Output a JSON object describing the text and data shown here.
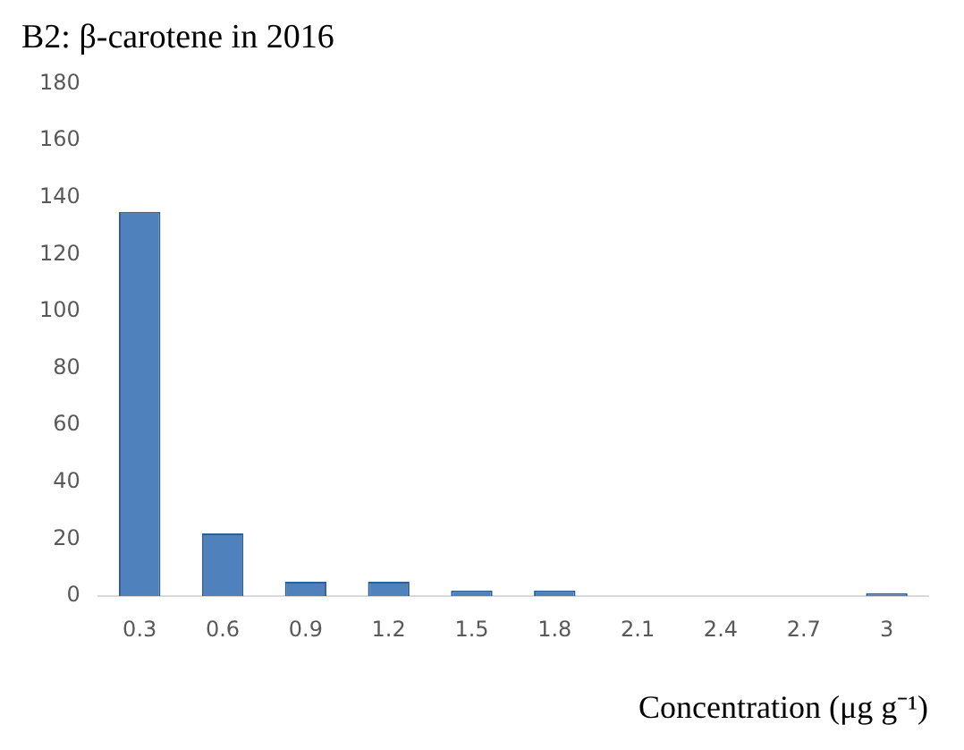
{
  "chart_data": {
    "type": "bar",
    "title": "B2: β-carotene in 2016",
    "xlabel": "Concentration (μg g⁻¹)",
    "categories": [
      "0.3",
      "0.6",
      "0.9",
      "1.2",
      "1.5",
      "1.8",
      "2.1",
      "2.4",
      "2.7",
      "3"
    ],
    "values": [
      135,
      22,
      5,
      5,
      2,
      2,
      0,
      0,
      0,
      1
    ],
    "color": "#4f81bd",
    "ylim": [
      0,
      180
    ],
    "yticks": [
      0,
      20,
      40,
      60,
      80,
      100,
      120,
      140,
      160,
      180
    ],
    "grid": false,
    "legend": false
  }
}
